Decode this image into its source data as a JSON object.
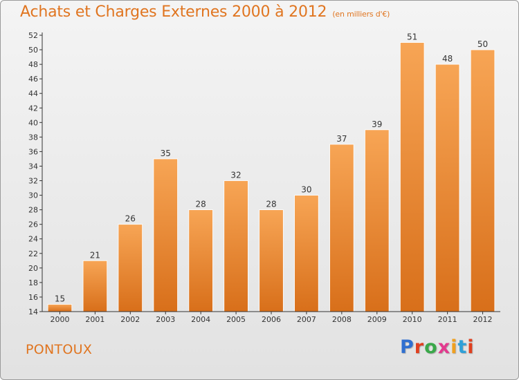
{
  "header": {
    "title": "Achats et Charges Externes 2000 à 2012",
    "unit": "(en milliers d'€)"
  },
  "footer": {
    "commune": "PONTOUX",
    "logo_letters": [
      "P",
      "r",
      "o",
      "x",
      "i",
      "t",
      "i"
    ]
  },
  "colors": {
    "bar_top": "#f7a555",
    "bar_bottom": "#d86f1a",
    "accent": "#e07520",
    "logo_letters": [
      "#2f6fd0",
      "#e0401f",
      "#3aa84a",
      "#e33a8e",
      "#f0a020",
      "#2fa0d8",
      "#e0401f"
    ]
  },
  "chart_data": {
    "type": "bar",
    "title": "Achats et Charges Externes 2000 à 2012",
    "subtitle": "(en milliers d'€)",
    "categories": [
      "2000",
      "2001",
      "2002",
      "2003",
      "2004",
      "2005",
      "2006",
      "2007",
      "2008",
      "2009",
      "2010",
      "2011",
      "2012"
    ],
    "values": [
      15,
      21,
      26,
      35,
      28,
      32,
      28,
      30,
      37,
      39,
      51,
      48,
      50
    ],
    "ylim": [
      14,
      52
    ],
    "yticks": [
      14,
      16,
      18,
      20,
      22,
      24,
      26,
      28,
      30,
      32,
      34,
      36,
      38,
      40,
      42,
      44,
      46,
      48,
      50,
      52
    ],
    "grid": false,
    "legend": false
  }
}
